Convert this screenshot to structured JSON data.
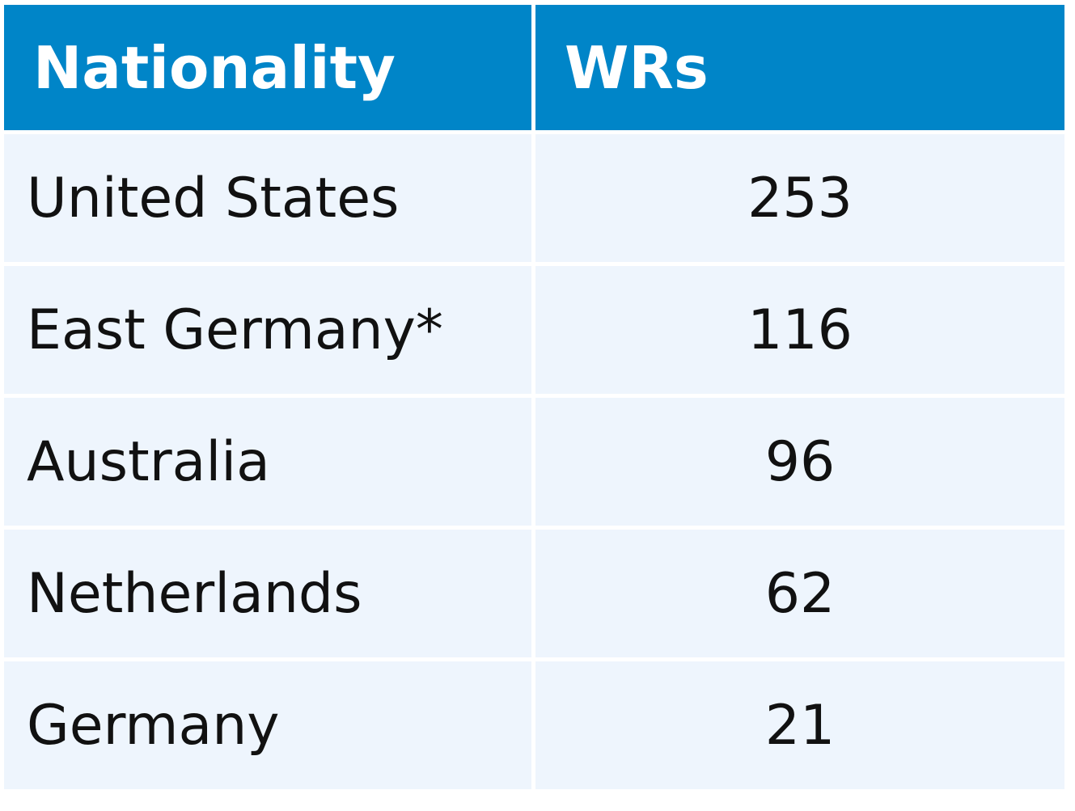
{
  "table": {
    "header": [
      "Nationality",
      "WRs"
    ],
    "rows": [
      [
        "United States",
        253
      ],
      [
        "East Germany*",
        116
      ],
      [
        "Australia",
        96
      ],
      [
        "Netherlands",
        62
      ],
      [
        "Germany",
        21
      ]
    ]
  }
}
